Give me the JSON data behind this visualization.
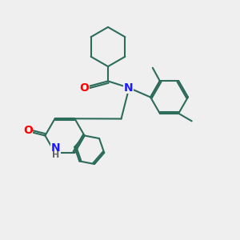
{
  "bg_color": "#efefef",
  "bond_color": "#2d6b5a",
  "bond_width": 1.5,
  "atom_colors": {
    "N": "#1a1aff",
    "O": "#ff0000",
    "H": "#666666",
    "C": "#2d6b5a"
  },
  "font_size_atom": 9,
  "font_size_h": 8
}
